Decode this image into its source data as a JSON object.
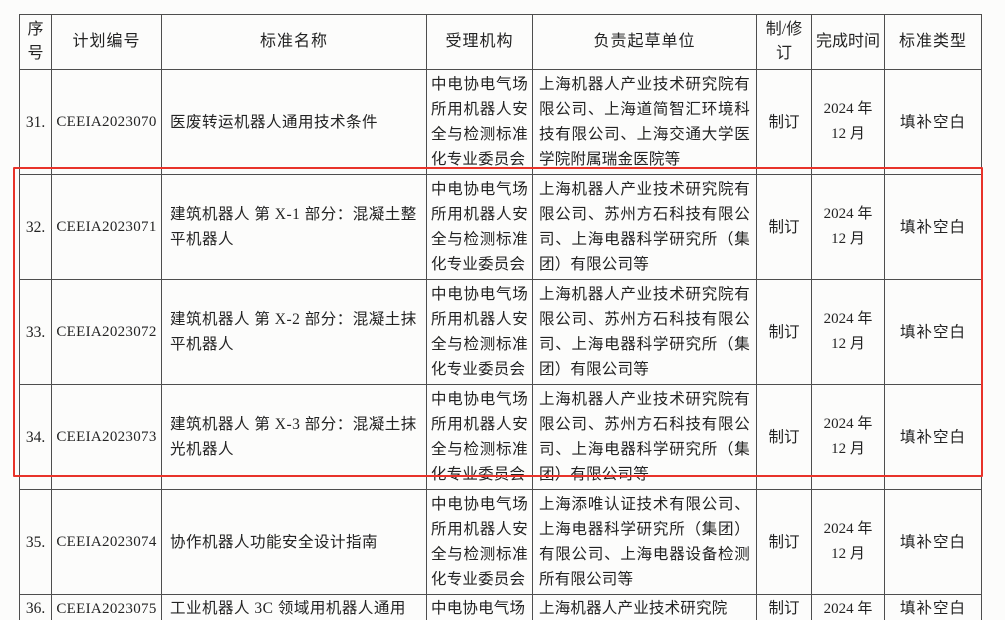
{
  "table": {
    "headers": [
      "序号",
      "计划编号",
      "标准名称",
      "受理机构",
      "负责起草单位",
      "制/修订",
      "完成时间",
      "标准类型"
    ],
    "rows": [
      {
        "seq": "31.",
        "code": "CEEIA2023070",
        "name": "医废转运机器人通用技术条件",
        "agency": "中电协电气场所用机器人安全与检测标准化专业委员会",
        "drafters": "上海机器人产业技术研究院有限公司、上海道简智汇环境科技有限公司、上海交通大学医学院附属瑞金医院等",
        "revision": "制订",
        "deadline": "2024 年 12 月",
        "category": "填补空白",
        "highlighted": false
      },
      {
        "seq": "32.",
        "code": "CEEIA2023071",
        "name": "建筑机器人 第 X-1 部分：混凝土整平机器人",
        "agency": "中电协电气场所用机器人安全与检测标准化专业委员会",
        "drafters": "上海机器人产业技术研究院有限公司、苏州方石科技有限公司、上海电器科学研究所（集团）有限公司等",
        "revision": "制订",
        "deadline": "2024 年 12 月",
        "category": "填补空白",
        "highlighted": true
      },
      {
        "seq": "33.",
        "code": "CEEIA2023072",
        "name": "建筑机器人 第 X-2 部分：混凝土抹平机器人",
        "agency": "中电协电气场所用机器人安全与检测标准化专业委员会",
        "drafters": "上海机器人产业技术研究院有限公司、苏州方石科技有限公司、上海电器科学研究所（集团）有限公司等",
        "revision": "制订",
        "deadline": "2024 年 12 月",
        "category": "填补空白",
        "highlighted": true
      },
      {
        "seq": "34.",
        "code": "CEEIA2023073",
        "name": "建筑机器人 第 X-3 部分：混凝土抹光机器人",
        "agency": "中电协电气场所用机器人安全与检测标准化专业委员会",
        "drafters": "上海机器人产业技术研究院有限公司、苏州方石科技有限公司、上海电器科学研究所（集团）有限公司等",
        "revision": "制订",
        "deadline": "2024 年 12 月",
        "category": "填补空白",
        "highlighted": true
      },
      {
        "seq": "35.",
        "code": "CEEIA2023074",
        "name": "协作机器人功能安全设计指南",
        "agency": "中电协电气场所用机器人安全与检测标准化专业委员会",
        "drafters": "上海添唯认证技术有限公司、上海电器科学研究所（集团）有限公司、上海电器设备检测所有限公司等",
        "revision": "制订",
        "deadline": "2024 年 12 月",
        "category": "填补空白",
        "highlighted": false
      },
      {
        "seq": "36.",
        "code": "CEEIA2023075",
        "name": "工业机器人 3C 领域用机器人通用",
        "agency": "中电协电气场",
        "drafters": "上海机器人产业技术研究院",
        "revision": "制订",
        "deadline": "2024 年",
        "category": "填补空白",
        "highlighted": false
      }
    ]
  },
  "annotations": {
    "highlight_color": "#e8332a"
  }
}
